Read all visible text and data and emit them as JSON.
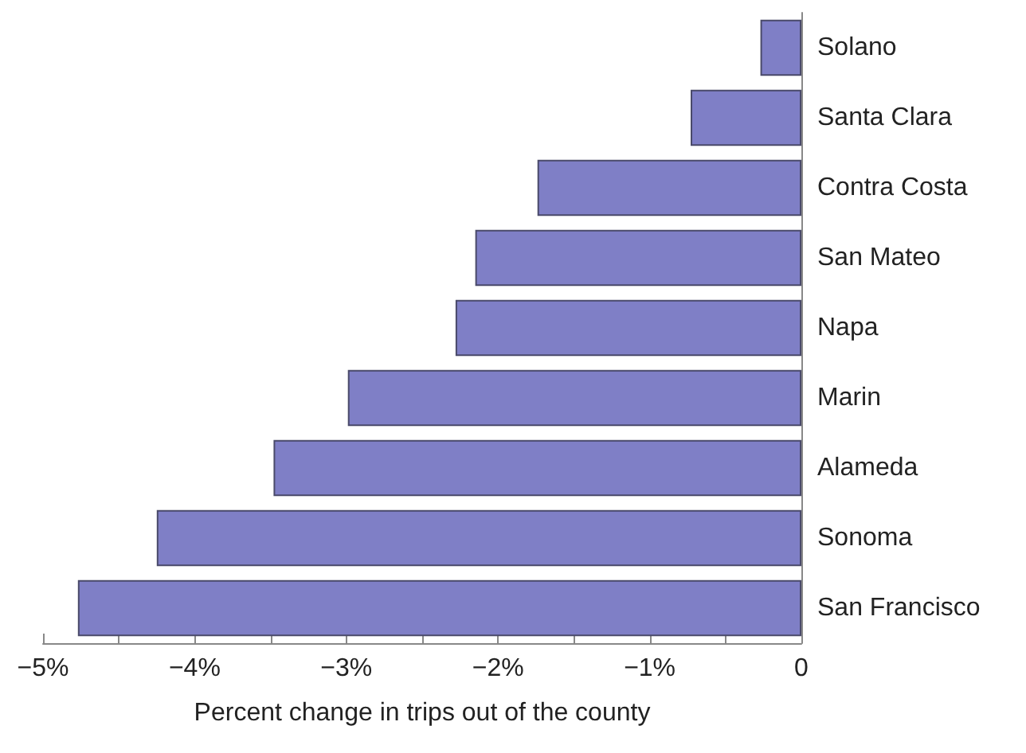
{
  "chart_data": {
    "type": "bar",
    "orientation": "horizontal",
    "xlabel": "Percent change in trips out of the county",
    "categories": [
      "Solano",
      "Santa Clara",
      "Contra Costa",
      "San Mateo",
      "Napa",
      "Marin",
      "Alameda",
      "Sonoma",
      "San Francisco"
    ],
    "values": [
      -0.27,
      -0.73,
      -1.74,
      -2.15,
      -2.28,
      -2.99,
      -3.48,
      -4.25,
      -4.77
    ],
    "color": "#7f7fc6",
    "xlim": [
      -5,
      0
    ],
    "xticks": [
      {
        "value": -5,
        "label": "−5%"
      },
      {
        "value": -4.5,
        "label": null
      },
      {
        "value": -4,
        "label": "−4%"
      },
      {
        "value": -3.5,
        "label": null
      },
      {
        "value": -3,
        "label": "−3%"
      },
      {
        "value": -2.5,
        "label": null
      },
      {
        "value": -2,
        "label": "−2%"
      },
      {
        "value": -1.5,
        "label": null
      },
      {
        "value": -1,
        "label": "−1%"
      },
      {
        "value": -0.5,
        "label": null
      },
      {
        "value": 0,
        "label": "0"
      }
    ],
    "grid": false
  }
}
